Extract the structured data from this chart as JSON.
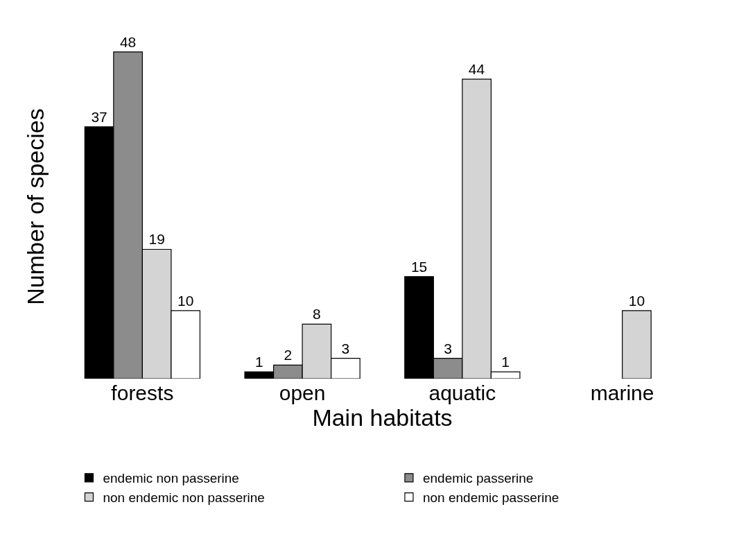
{
  "chart_data": {
    "type": "bar",
    "xlabel": "Main habitats",
    "ylabel": "Number of species",
    "categories": [
      "forests",
      "open",
      "aquatic",
      "marine"
    ],
    "series": [
      {
        "name": "endemic non passerine",
        "color": "#000000",
        "values": [
          37,
          1,
          15,
          null
        ]
      },
      {
        "name": "endemic passerine",
        "color": "#8c8c8c",
        "values": [
          48,
          2,
          3,
          null
        ]
      },
      {
        "name": "non endemic non passerine",
        "color": "#d4d4d4",
        "values": [
          19,
          8,
          44,
          10
        ]
      },
      {
        "name": "non endemic passerine",
        "color": "#ffffff",
        "values": [
          10,
          3,
          1,
          null
        ]
      }
    ],
    "data_labels": true,
    "legend": "bottom",
    "tick_labels": "x"
  }
}
